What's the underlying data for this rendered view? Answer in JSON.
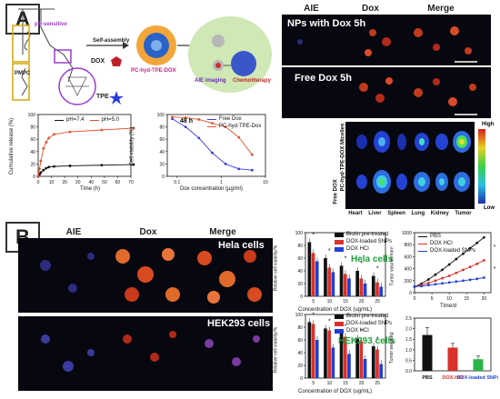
{
  "panelA": {
    "label": "A",
    "scheme": {
      "polymer_label": "PMPC",
      "ph_sensitive": "pH-sensitive",
      "self_assembly": "Self-assembly",
      "dox": "DOX",
      "tpe": "TPE",
      "micelle": "PC-hyd-TPE-DOX",
      "aie_imaging": "AIE imaging",
      "chemotherapy": "Chemotherapy"
    },
    "micro": {
      "headers": [
        "AIE",
        "Dox",
        "Merge"
      ],
      "row1": "NPs with Dox 5h",
      "row2": "Free Dox 5h"
    },
    "ivis": {
      "row1": "PC-hyd-TPE-DOX Micelles",
      "row2": "Free DOX",
      "organs": [
        "Heart",
        "Liver",
        "Spleen",
        "Lung",
        "Kidney",
        "Tumor"
      ],
      "scale_high": "High",
      "scale_low": "Low"
    }
  },
  "panelB": {
    "label": "B",
    "micro": {
      "headers": [
        "AIE",
        "Dox",
        "Merge"
      ],
      "row1": "Hela cells",
      "row2": "HEK293 cells"
    },
    "viab_hela_label": "Hela cells",
    "viab_hek_label": "HEK293 cells",
    "viab_legend": [
      "Biotin pre-treated",
      "DOX-loaded SNPs",
      "DOX HCl"
    ],
    "tumor_legend": [
      "PBS",
      "DOX HCl",
      "DOX-loaded SNPs"
    ],
    "weight_categories": [
      "PBS",
      "DOX-HCl",
      "DOX-loaded SNPs"
    ]
  },
  "colors": {
    "pbs": "#111111",
    "dox_hcl": "#d9312b",
    "snps": "#1f3fd6",
    "biotin": "#111111",
    "ph74": "#111111",
    "ph50": "#e0522e",
    "free_dox": "#3b3bd8",
    "micelle_line": "#e0522e",
    "green_bar": "#2cb34a"
  },
  "chart_data": [
    {
      "id": "release",
      "type": "line",
      "xlabel": "Time (h)",
      "ylabel": "Cumulative release (%)",
      "xlim": [
        0,
        70
      ],
      "ylim": [
        0,
        100
      ],
      "xticks": [
        0,
        10,
        20,
        30,
        40,
        50,
        60,
        70
      ],
      "yticks": [
        0,
        20,
        40,
        60,
        80,
        100
      ],
      "series": [
        {
          "name": "pH=7.4",
          "x": [
            0,
            1,
            2,
            4,
            6,
            8,
            12,
            24,
            48,
            72
          ],
          "y": [
            0,
            3,
            6,
            10,
            13,
            15,
            16,
            17,
            18,
            19
          ]
        },
        {
          "name": "pH=5.0",
          "x": [
            0,
            1,
            2,
            4,
            6,
            8,
            12,
            24,
            48,
            72
          ],
          "y": [
            0,
            12,
            25,
            45,
            55,
            62,
            68,
            72,
            75,
            78
          ]
        }
      ]
    },
    {
      "id": "viability48h",
      "type": "line",
      "title": "48 h",
      "xlabel": "Dox concentration (μg/ml)",
      "ylabel": "Cell viability (%)",
      "xscale": "log",
      "xlim": [
        0.06,
        10
      ],
      "ylim": [
        0,
        100
      ],
      "xticks": [
        0.1,
        1,
        10
      ],
      "yticks": [
        0,
        20,
        40,
        60,
        80,
        100
      ],
      "series": [
        {
          "name": "Free Dox",
          "x": [
            0.078,
            0.156,
            0.3125,
            0.625,
            1.25,
            2.5,
            5
          ],
          "y": [
            93,
            80,
            62,
            38,
            20,
            12,
            10
          ]
        },
        {
          "name": "PC-hyd-TPE-Dox",
          "x": [
            0.078,
            0.156,
            0.3125,
            0.625,
            1.25,
            2.5,
            5
          ],
          "y": [
            96,
            95,
            92,
            86,
            80,
            63,
            35
          ]
        }
      ]
    },
    {
      "id": "hela_viab",
      "type": "bar",
      "xlabel": "Concentration of DOX (ug/mL)",
      "ylabel": "Relative cell viability/%",
      "categories": [
        "5",
        "10",
        "15",
        "20",
        "25"
      ],
      "ylim": [
        0,
        100
      ],
      "yticks": [
        0,
        20,
        40,
        60,
        80,
        100
      ],
      "series": [
        {
          "name": "Biotin pre-treated",
          "values": [
            85,
            60,
            48,
            40,
            32
          ]
        },
        {
          "name": "DOX-loaded SNPs",
          "values": [
            68,
            45,
            35,
            28,
            22
          ]
        },
        {
          "name": "DOX HCl",
          "values": [
            55,
            38,
            28,
            20,
            15
          ]
        }
      ],
      "annotations": [
        "*",
        "*",
        "*",
        "*",
        "*"
      ]
    },
    {
      "id": "hek_viab",
      "type": "bar",
      "xlabel": "Concentration of DOX (ug/mL)",
      "ylabel": "Relative cell viability/%",
      "categories": [
        "5",
        "10",
        "15",
        "20",
        "25"
      ],
      "ylim": [
        0,
        100
      ],
      "yticks": [
        0,
        20,
        40,
        60,
        80,
        100
      ],
      "series": [
        {
          "name": "Biotin pre-treated",
          "values": [
            88,
            78,
            70,
            62,
            50
          ]
        },
        {
          "name": "DOX-loaded SNPs",
          "values": [
            85,
            75,
            65,
            58,
            45
          ]
        },
        {
          "name": "DOX HCl",
          "values": [
            60,
            48,
            38,
            30,
            22
          ]
        }
      ],
      "annotations": [
        "*",
        "*",
        "*",
        "*",
        "*"
      ]
    },
    {
      "id": "tumor_volume",
      "type": "line",
      "xlabel": "Time/d",
      "ylabel": "Tumor volume/mm³",
      "xlim": [
        0,
        22
      ],
      "ylim": [
        0,
        1000
      ],
      "xticks": [
        0,
        5,
        10,
        15,
        20
      ],
      "yticks": [
        0,
        200,
        400,
        600,
        800,
        1000
      ],
      "series": [
        {
          "name": "PBS",
          "x": [
            0,
            2,
            4,
            6,
            8,
            10,
            12,
            14,
            16,
            18,
            20
          ],
          "y": [
            100,
            150,
            220,
            300,
            380,
            470,
            560,
            650,
            740,
            830,
            920
          ]
        },
        {
          "name": "DOX HCl",
          "x": [
            0,
            2,
            4,
            6,
            8,
            10,
            12,
            14,
            16,
            18,
            20
          ],
          "y": [
            100,
            130,
            160,
            200,
            240,
            280,
            330,
            380,
            430,
            480,
            540
          ]
        },
        {
          "name": "DOX-loaded SNPs",
          "x": [
            0,
            2,
            4,
            6,
            8,
            10,
            12,
            14,
            16,
            18,
            20
          ],
          "y": [
            100,
            110,
            125,
            140,
            155,
            170,
            185,
            200,
            215,
            230,
            250
          ]
        }
      ],
      "annotations": [
        "*",
        "*"
      ]
    },
    {
      "id": "tumor_weight",
      "type": "bar",
      "ylabel": "Tumor weight/g",
      "categories": [
        "PBS",
        "DOX-HCl",
        "DOX-loaded SNPs"
      ],
      "values": [
        1.7,
        1.1,
        0.55
      ],
      "errors": [
        0.35,
        0.2,
        0.15
      ],
      "ylim": [
        0,
        2.5
      ],
      "yticks": [
        0.0,
        0.5,
        1.0,
        1.5,
        2.0,
        2.5
      ]
    }
  ]
}
